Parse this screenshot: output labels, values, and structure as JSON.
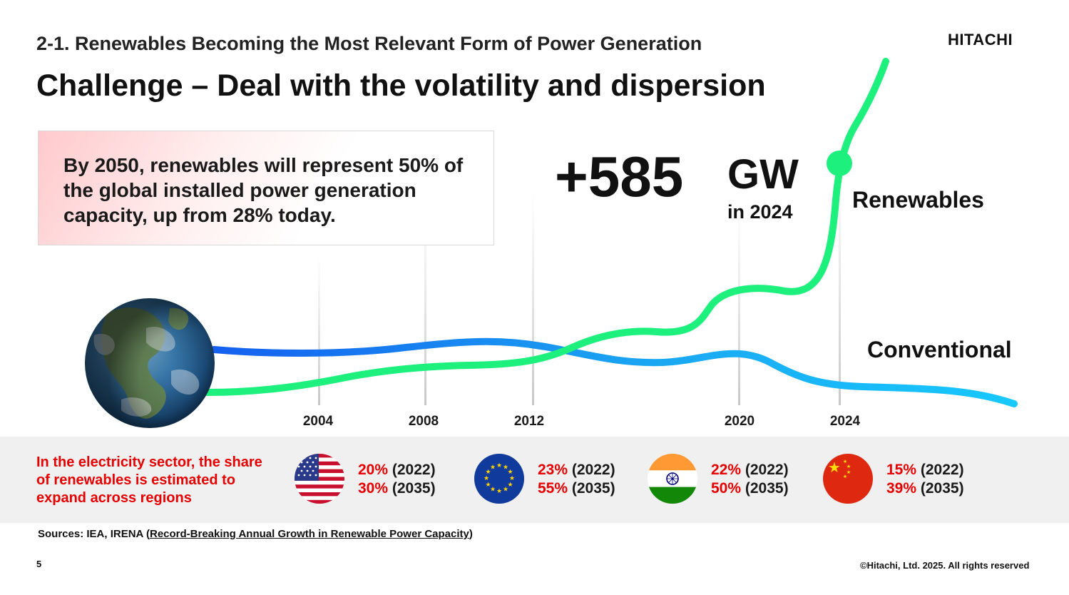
{
  "header": {
    "section_title": "2-1. Renewables Becoming the Most Relevant Form of Power Generation",
    "headline": "Challenge – Deal with the volatility and dispersion",
    "logo": "HITACHI"
  },
  "callout": {
    "text": "By 2050, renewables will represent 50% of the global installed power generation capacity, up from 28% today."
  },
  "highlight": {
    "value": "+585",
    "unit": "GW",
    "period": "in 2024"
  },
  "chart_data": {
    "type": "line",
    "x_ticks": [
      "2004",
      "2008",
      "2012",
      "2020",
      "2024"
    ],
    "series": [
      {
        "name": "Renewables",
        "color": "#1ef07e"
      },
      {
        "name": "Conventional",
        "color": "#1aa7f2"
      }
    ],
    "grid": "vertical lines at year ticks",
    "marker": {
      "series": "Renewables",
      "x": "2024"
    },
    "globe_icon": "earth-globe-icon"
  },
  "regions": {
    "note": "In the electricity sector, the share of renewables is estimated to expand across regions",
    "items": [
      {
        "flag": "usa-flag-icon",
        "pct_2022": "20%",
        "yr_2022": " (2022)",
        "pct_2035": "30%",
        "yr_2035": " (2035)"
      },
      {
        "flag": "eu-flag-icon",
        "pct_2022": "23%",
        "yr_2022": " (2022)",
        "pct_2035": "55%",
        "yr_2035": " (2035)"
      },
      {
        "flag": "india-flag-icon",
        "pct_2022": "22%",
        "yr_2022": " (2022)",
        "pct_2035": "50%",
        "yr_2035": " (2035)"
      },
      {
        "flag": "china-flag-icon",
        "pct_2022": "15%",
        "yr_2022": " (2022)",
        "pct_2035": "39%",
        "yr_2035": " (2035)"
      }
    ]
  },
  "footer": {
    "sources_prefix": "Sources: IEA, IRENA (",
    "sources_link": "Record-Breaking Annual Growth in Renewable Power Capacity",
    "sources_suffix": ")",
    "page_number": "5",
    "copyright": "©Hitachi, Ltd. 2025. All rights reserved"
  },
  "colors": {
    "accent_red": "#e60000",
    "renewables_green": "#1ef07e",
    "conventional_blue": "#1aa7f2"
  }
}
